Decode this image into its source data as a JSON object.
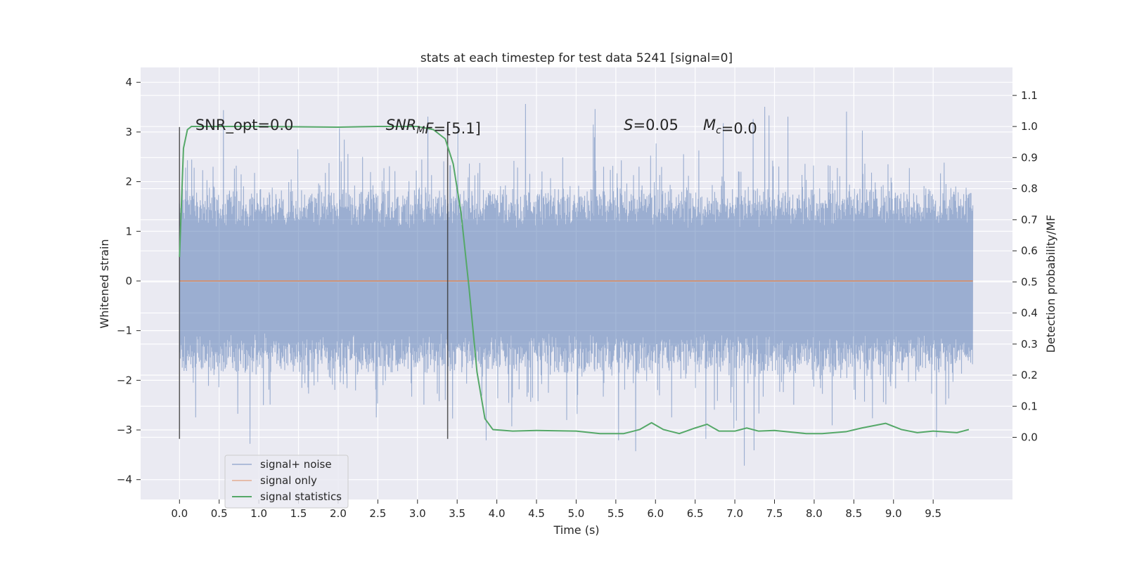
{
  "chart_data": {
    "type": "line",
    "title": "stats at each timestep for test data 5241 [signal=0]",
    "xlabel": "Time (s)",
    "ylabel_left": "Whitened strain",
    "ylabel_right": "Detection probability/MF",
    "xlim": [
      -0.49,
      10.5
    ],
    "ylim_left": [
      -4.4,
      4.3
    ],
    "ylim_right": [
      -0.2,
      1.19
    ],
    "x_ticks": [
      "0.0",
      "0.5",
      "1.0",
      "1.5",
      "2.0",
      "2.5",
      "3.0",
      "3.5",
      "4.0",
      "4.5",
      "5.0",
      "5.5",
      "6.0",
      "6.5",
      "7.0",
      "7.5",
      "8.0",
      "8.5",
      "9.0",
      "9.5"
    ],
    "y_ticks_left": [
      "−4",
      "−3",
      "−2",
      "−1",
      "0",
      "1",
      "2",
      "3",
      "4"
    ],
    "y_ticks_right": [
      "0.0",
      "0.1",
      "0.2",
      "0.3",
      "0.4",
      "0.5",
      "0.6",
      "0.7",
      "0.8",
      "0.9",
      "1.0",
      "1.1"
    ],
    "grid": true,
    "legend_placement": "lower-left",
    "annotations": [
      {
        "id": "snr-opt",
        "x": 0.2,
        "y": 3.1,
        "parts": [
          {
            "t": "SNR_opt=0.0",
            "i": false
          }
        ]
      },
      {
        "id": "snr-mf",
        "x": 2.6,
        "y": 3.1,
        "parts": [
          {
            "t": "SNR",
            "i": true
          },
          {
            "t": "M",
            "i": true,
            "sub": true
          },
          {
            "t": "F",
            "i": true
          },
          {
            "t": "=[5.1]",
            "i": false
          }
        ]
      },
      {
        "id": "s-value",
        "x": 5.6,
        "y": 3.1,
        "parts": [
          {
            "t": "S",
            "i": true
          },
          {
            "t": "=0.05",
            "i": false
          }
        ]
      },
      {
        "id": "mc-value",
        "x": 6.6,
        "y": 3.1,
        "parts": [
          {
            "t": "M",
            "i": true
          },
          {
            "t": "c",
            "i": true,
            "sub": true
          },
          {
            "t": "=0.0",
            "i": false
          }
        ]
      }
    ],
    "vlines": [
      {
        "x": 0.0,
        "ymin": -3.18,
        "ymax": 3.1
      },
      {
        "x": 3.38,
        "ymin": -3.18,
        "ymax": 3.1
      }
    ],
    "series": [
      {
        "name": "signal+ noise",
        "color": "#4c72b0",
        "style": "dense noise trace",
        "x_range": [
          0.0,
          10.0
        ],
        "envelope_upper_typ": 1.8,
        "envelope_lower_typ": -1.8,
        "peak_max": 3.95,
        "peak_min": -3.75
      },
      {
        "name": "signal only",
        "color": "#dd8452",
        "x": [
          0.0,
          10.0
        ],
        "y": [
          0.0,
          0.0
        ]
      },
      {
        "name": "signal statistics",
        "color": "#55a868",
        "axis": "right",
        "x": [
          0.0,
          0.05,
          0.1,
          0.15,
          0.25,
          0.5,
          1.0,
          2.0,
          2.5,
          3.0,
          3.2,
          3.35,
          3.45,
          3.55,
          3.65,
          3.75,
          3.85,
          3.95,
          4.2,
          4.5,
          5.0,
          5.3,
          5.6,
          5.8,
          5.95,
          6.1,
          6.3,
          6.5,
          6.65,
          6.8,
          7.0,
          7.15,
          7.3,
          7.5,
          7.7,
          7.9,
          8.1,
          8.4,
          8.6,
          8.9,
          9.1,
          9.3,
          9.5,
          9.8,
          9.95
        ],
        "y": [
          0.58,
          0.93,
          0.99,
          1.0,
          1.0,
          1.0,
          1.0,
          0.998,
          1.0,
          1.0,
          0.99,
          0.96,
          0.88,
          0.72,
          0.48,
          0.21,
          0.06,
          0.025,
          0.02,
          0.022,
          0.02,
          0.012,
          0.012,
          0.025,
          0.047,
          0.025,
          0.012,
          0.03,
          0.042,
          0.02,
          0.02,
          0.03,
          0.02,
          0.022,
          0.017,
          0.012,
          0.012,
          0.018,
          0.03,
          0.045,
          0.025,
          0.015,
          0.02,
          0.015,
          0.025
        ]
      }
    ]
  }
}
